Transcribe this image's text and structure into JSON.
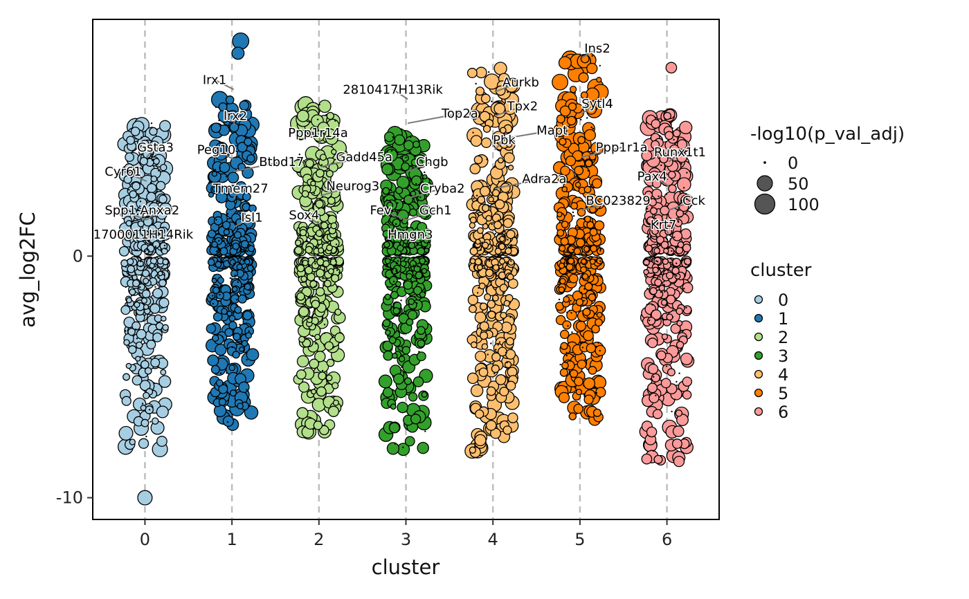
{
  "chart_data": {
    "type": "scatter",
    "title": "",
    "xlabel": "cluster",
    "ylabel": "avg_log2FC",
    "categories": [
      "0",
      "1",
      "2",
      "3",
      "4",
      "5",
      "6"
    ],
    "x_ticks": [
      "0",
      "1",
      "2",
      "3",
      "4",
      "5",
      "6"
    ],
    "y_ticks": [
      {
        "value": 0,
        "label": "0"
      },
      {
        "value": -10,
        "label": "-10"
      }
    ],
    "xlim": [
      -0.6,
      6.6
    ],
    "ylim": [
      -10.9,
      9.8
    ],
    "grid": "dashed vertical lines at each cluster",
    "colors": [
      "#a6cee3",
      "#1f78b4",
      "#b2df8a",
      "#33a02c",
      "#fdbf6f",
      "#ff7f00",
      "#fb9a99"
    ],
    "point_cloud": [
      {
        "cluster": "0",
        "pos_max": 5.5,
        "neg_min": -8.0
      },
      {
        "cluster": "1",
        "pos_max": 6.5,
        "neg_min": -7.0
      },
      {
        "cluster": "2",
        "pos_max": 6.3,
        "neg_min": -7.3
      },
      {
        "cluster": "3",
        "pos_max": 5.1,
        "neg_min": -8.0
      },
      {
        "cluster": "4",
        "pos_max": 7.8,
        "neg_min": -8.2
      },
      {
        "cluster": "5",
        "pos_max": 8.3,
        "neg_min": -6.9
      },
      {
        "cluster": "6",
        "pos_max": 5.9,
        "neg_min": -8.5
      }
    ],
    "extreme_points": [
      {
        "cluster": "0",
        "x": 0.0,
        "y": -10.0,
        "size": 50
      },
      {
        "cluster": "1",
        "x": 1.1,
        "y": 8.9,
        "size": 70
      },
      {
        "cluster": "1",
        "x": 1.07,
        "y": 8.4,
        "size": 30
      },
      {
        "cluster": "6",
        "x": 6.05,
        "y": 7.8,
        "size": 20
      },
      {
        "cluster": "3",
        "x": 2.97,
        "y": -8.0,
        "size": 30
      },
      {
        "cluster": "4",
        "x": 3.86,
        "y": -7.9,
        "size": 30
      }
    ],
    "labels": [
      {
        "gene": "Gsta3",
        "cluster": "0",
        "x": 0.12,
        "y": 4.5
      },
      {
        "gene": "Cyr61",
        "cluster": "0",
        "x": -0.25,
        "y": 3.5
      },
      {
        "gene": "Spp1",
        "cluster": "0",
        "x": -0.28,
        "y": 1.9
      },
      {
        "gene": "Anxa2",
        "cluster": "0",
        "x": 0.17,
        "y": 1.9
      },
      {
        "gene": "1700011H14Rik",
        "cluster": "0",
        "x": -0.02,
        "y": 0.9
      },
      {
        "gene": "Irx1",
        "cluster": "1",
        "x": 0.8,
        "y": 7.3
      },
      {
        "gene": "Irx2",
        "cluster": "1",
        "x": 1.04,
        "y": 5.8
      },
      {
        "gene": "Peg10",
        "cluster": "1",
        "x": 0.82,
        "y": 4.4
      },
      {
        "gene": "Btbd17",
        "cluster": "1",
        "x": 1.57,
        "y": 3.9
      },
      {
        "gene": "Tmem27",
        "cluster": "1",
        "x": 1.1,
        "y": 2.8
      },
      {
        "gene": "Isl1",
        "cluster": "1",
        "x": 1.23,
        "y": 1.6
      },
      {
        "gene": "Ppp1r14a",
        "cluster": "2",
        "x": 1.99,
        "y": 5.1
      },
      {
        "gene": "Gadd45a",
        "cluster": "2",
        "x": 2.52,
        "y": 4.1
      },
      {
        "gene": "Neurog3",
        "cluster": "2",
        "x": 2.39,
        "y": 2.9
      },
      {
        "gene": "Sox4",
        "cluster": "2",
        "x": 1.83,
        "y": 1.7
      },
      {
        "gene": "2810417H13Rik",
        "cluster": "3",
        "x": 2.85,
        "y": 6.9
      },
      {
        "gene": "Top2a",
        "cluster": "3",
        "x": 3.62,
        "y": 5.9
      },
      {
        "gene": "Chgb",
        "cluster": "3",
        "x": 3.3,
        "y": 3.9
      },
      {
        "gene": "Cryba2",
        "cluster": "3",
        "x": 3.42,
        "y": 2.8
      },
      {
        "gene": "Fev",
        "cluster": "3",
        "x": 2.71,
        "y": 1.9
      },
      {
        "gene": "Gch1",
        "cluster": "3",
        "x": 3.34,
        "y": 1.9
      },
      {
        "gene": "Hmgn3",
        "cluster": "3",
        "x": 3.05,
        "y": 0.9
      },
      {
        "gene": "Aurkb",
        "cluster": "4",
        "x": 4.32,
        "y": 7.2
      },
      {
        "gene": "Tpx2",
        "cluster": "4",
        "x": 4.34,
        "y": 6.2
      },
      {
        "gene": "Pbk",
        "cluster": "4",
        "x": 4.13,
        "y": 4.8
      },
      {
        "gene": "Adra2a",
        "cluster": "4",
        "x": 4.59,
        "y": 3.2
      },
      {
        "gene": "Mapt",
        "cluster": "4",
        "x": 4.68,
        "y": 5.2
      },
      {
        "gene": "Ins2",
        "cluster": "5",
        "x": 5.2,
        "y": 8.6
      },
      {
        "gene": "Sytl4",
        "cluster": "5",
        "x": 5.2,
        "y": 6.3
      },
      {
        "gene": "Ppp1r1a",
        "cluster": "5",
        "x": 5.48,
        "y": 4.5
      },
      {
        "gene": "BC023829",
        "cluster": "5",
        "x": 5.44,
        "y": 2.3
      },
      {
        "gene": "Runx1t1",
        "cluster": "6",
        "x": 6.15,
        "y": 4.3
      },
      {
        "gene": "Pax4",
        "cluster": "6",
        "x": 5.83,
        "y": 3.3
      },
      {
        "gene": "Cck",
        "cluster": "6",
        "x": 6.31,
        "y": 2.3
      },
      {
        "gene": "Krt7",
        "cluster": "6",
        "x": 5.96,
        "y": 1.3
      }
    ],
    "legend_size": {
      "title": "-log10(p_val_adj)",
      "entries": [
        {
          "label": "0",
          "value": 0
        },
        {
          "label": "50",
          "value": 50
        },
        {
          "label": "100",
          "value": 100
        }
      ]
    },
    "legend_color": {
      "title": "cluster",
      "entries": [
        "0",
        "1",
        "2",
        "3",
        "4",
        "5",
        "6"
      ]
    }
  }
}
